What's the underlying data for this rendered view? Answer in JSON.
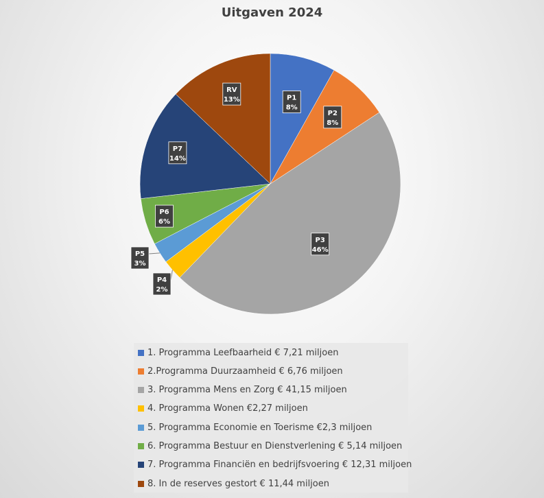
{
  "chart_data": {
    "type": "pie",
    "title": "Uitgaven 2024",
    "slices": [
      {
        "label": "P1",
        "percent_label": "8%",
        "value": 7.21,
        "color": "#4472C4",
        "legend": "1. Programma Leefbaarheid € 7,21 miljoen"
      },
      {
        "label": "P2",
        "percent_label": "8%",
        "value": 6.76,
        "color": "#ED7D31",
        "legend": "2.Programma Duurzaamheid € 6,76 miljoen"
      },
      {
        "label": "P3",
        "percent_label": "46%",
        "value": 41.15,
        "color": "#A5A5A5",
        "legend": "3. Programma Mens en Zorg € 41,15 miljoen"
      },
      {
        "label": "P4",
        "percent_label": "2%",
        "value": 2.27,
        "color": "#FFC000",
        "legend": "4. Programma Wonen €2,27 miljoen"
      },
      {
        "label": "P5",
        "percent_label": "3%",
        "value": 2.3,
        "color": "#5B9BD5",
        "legend": "5. Programma Economie en Toerisme €2,3 miljoen"
      },
      {
        "label": "P6",
        "percent_label": "6%",
        "value": 5.14,
        "color": "#70AD47",
        "legend": "6. Programma Bestuur en Dienstverlening € 5,14 miljoen"
      },
      {
        "label": "P7",
        "percent_label": "14%",
        "value": 12.31,
        "color": "#264478",
        "legend": "7. Programma Financiën en bedrijfsvoering € 12,31 miljoen"
      },
      {
        "label": "RV",
        "percent_label": "13%",
        "value": 11.44,
        "color": "#9E480E",
        "legend": "8. In de reserves gestort € 11,44 miljoen"
      }
    ],
    "legend_position": "bottom"
  }
}
